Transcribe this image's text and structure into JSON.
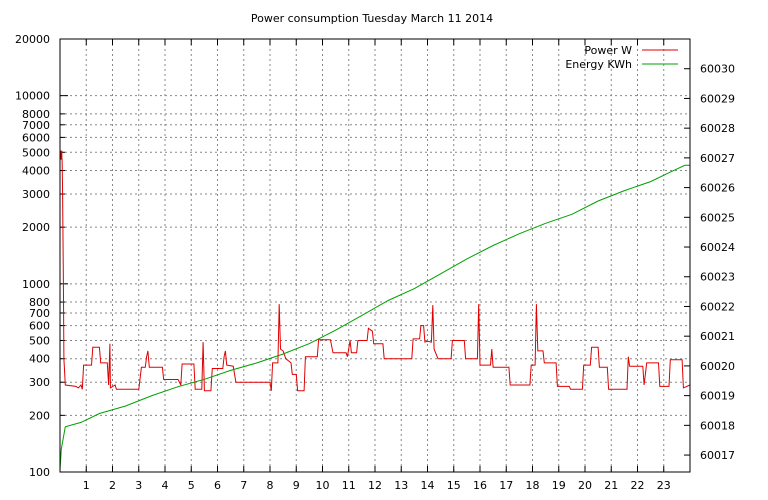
{
  "chart_data": {
    "type": "line",
    "title": "Power consumption Tuesday March 11 2014",
    "xlabel": "",
    "ylabel": "",
    "y2label": "",
    "x_ticks": [
      "1",
      "2",
      "3",
      "4",
      "5",
      "6",
      "7",
      "8",
      "9",
      "10",
      "11",
      "12",
      "13",
      "14",
      "15",
      "16",
      "17",
      "18",
      "19",
      "20",
      "21",
      "22",
      "23"
    ],
    "xlim": [
      0,
      24
    ],
    "y_scale": "log",
    "ylim": [
      100,
      20000
    ],
    "y_ticks": [
      {
        "value": 100,
        "label": "100"
      },
      {
        "value": 200,
        "label": "200"
      },
      {
        "value": 300,
        "label": "300"
      },
      {
        "value": 400,
        "label": "400"
      },
      {
        "value": 500,
        "label": "500"
      },
      {
        "value": 600,
        "label": "600"
      },
      {
        "value": 700,
        "label": "700"
      },
      {
        "value": 800,
        "label": "800"
      },
      {
        "value": 1000,
        "label": "1000"
      },
      {
        "value": 2000,
        "label": "2000"
      },
      {
        "value": 3000,
        "label": "3000"
      },
      {
        "value": 4000,
        "label": "4000"
      },
      {
        "value": 5000,
        "label": "5000"
      },
      {
        "value": 6000,
        "label": "6000"
      },
      {
        "value": 7000,
        "label": "7000"
      },
      {
        "value": 8000,
        "label": "8000"
      },
      {
        "value": 10000,
        "label": "10000"
      },
      {
        "value": 20000,
        "label": "20000"
      }
    ],
    "y2lim": [
      60016.43,
      60031.0
    ],
    "y2_ticks": [
      "60017",
      "60018",
      "60019",
      "60020",
      "60021",
      "60022",
      "60023",
      "60024",
      "60025",
      "60026",
      "60027",
      "60028",
      "60029",
      "60030"
    ],
    "grid": true,
    "legend_position": "top-right",
    "series": [
      {
        "name": "Power W",
        "color": "#e00000",
        "axis": "left",
        "points": [
          [
            0.0,
            4600
          ],
          [
            0.08,
            4600
          ],
          [
            0.1,
            3000
          ],
          [
            0.13,
            1000
          ],
          [
            0.15,
            400
          ],
          [
            0.2,
            290
          ],
          [
            0.6,
            285
          ],
          [
            0.7,
            280
          ],
          [
            0.8,
            290
          ],
          [
            0.85,
            275
          ],
          [
            0.9,
            370
          ],
          [
            1.2,
            370
          ],
          [
            1.25,
            460
          ],
          [
            1.5,
            460
          ],
          [
            1.55,
            380
          ],
          [
            1.8,
            380
          ],
          [
            1.85,
            290
          ],
          [
            1.9,
            480
          ],
          [
            1.92,
            280
          ],
          [
            2.1,
            290
          ],
          [
            2.15,
            275
          ],
          [
            3.0,
            275
          ],
          [
            3.1,
            360
          ],
          [
            3.25,
            360
          ],
          [
            3.3,
            410
          ],
          [
            3.35,
            440
          ],
          [
            3.4,
            360
          ],
          [
            3.9,
            360
          ],
          [
            3.95,
            310
          ],
          [
            4.5,
            310
          ],
          [
            4.6,
            290
          ],
          [
            4.65,
            375
          ],
          [
            5.1,
            375
          ],
          [
            5.15,
            275
          ],
          [
            5.4,
            275
          ],
          [
            5.45,
            490
          ],
          [
            5.5,
            270
          ],
          [
            5.75,
            270
          ],
          [
            5.8,
            355
          ],
          [
            6.2,
            355
          ],
          [
            6.25,
            410
          ],
          [
            6.3,
            440
          ],
          [
            6.35,
            370
          ],
          [
            6.6,
            365
          ],
          [
            6.7,
            300
          ],
          [
            8.0,
            300
          ],
          [
            8.05,
            270
          ],
          [
            8.1,
            380
          ],
          [
            8.3,
            380
          ],
          [
            8.35,
            780
          ],
          [
            8.4,
            450
          ],
          [
            8.5,
            440
          ],
          [
            8.6,
            400
          ],
          [
            8.8,
            380
          ],
          [
            8.85,
            330
          ],
          [
            9.0,
            330
          ],
          [
            9.05,
            270
          ],
          [
            9.3,
            270
          ],
          [
            9.35,
            410
          ],
          [
            9.8,
            410
          ],
          [
            9.85,
            505
          ],
          [
            10.3,
            505
          ],
          [
            10.4,
            430
          ],
          [
            10.9,
            430
          ],
          [
            10.95,
            410
          ],
          [
            11.05,
            500
          ],
          [
            11.1,
            430
          ],
          [
            11.3,
            430
          ],
          [
            11.35,
            500
          ],
          [
            11.7,
            500
          ],
          [
            11.75,
            580
          ],
          [
            11.9,
            560
          ],
          [
            11.95,
            480
          ],
          [
            12.3,
            480
          ],
          [
            12.35,
            400
          ],
          [
            13.4,
            400
          ],
          [
            13.45,
            510
          ],
          [
            13.7,
            510
          ],
          [
            13.75,
            600
          ],
          [
            13.85,
            600
          ],
          [
            13.9,
            490
          ],
          [
            14.0,
            495
          ],
          [
            14.15,
            490
          ],
          [
            14.2,
            770
          ],
          [
            14.25,
            450
          ],
          [
            14.4,
            400
          ],
          [
            14.9,
            400
          ],
          [
            14.95,
            500
          ],
          [
            15.4,
            500
          ],
          [
            15.45,
            400
          ],
          [
            15.9,
            400
          ],
          [
            15.95,
            780
          ],
          [
            16.0,
            370
          ],
          [
            16.4,
            370
          ],
          [
            16.45,
            450
          ],
          [
            16.5,
            360
          ],
          [
            17.1,
            360
          ],
          [
            17.15,
            290
          ],
          [
            17.9,
            290
          ],
          [
            17.95,
            370
          ],
          [
            18.1,
            370
          ],
          [
            18.15,
            780
          ],
          [
            18.2,
            440
          ],
          [
            18.4,
            440
          ],
          [
            18.45,
            380
          ],
          [
            18.9,
            380
          ],
          [
            18.95,
            285
          ],
          [
            19.4,
            285
          ],
          [
            19.45,
            275
          ],
          [
            19.9,
            275
          ],
          [
            19.95,
            370
          ],
          [
            20.2,
            370
          ],
          [
            20.25,
            460
          ],
          [
            20.5,
            460
          ],
          [
            20.55,
            360
          ],
          [
            20.85,
            360
          ],
          [
            20.9,
            275
          ],
          [
            21.6,
            275
          ],
          [
            21.65,
            410
          ],
          [
            21.7,
            365
          ],
          [
            22.2,
            365
          ],
          [
            22.25,
            290
          ],
          [
            22.35,
            380
          ],
          [
            22.8,
            380
          ],
          [
            22.85,
            285
          ],
          [
            23.2,
            285
          ],
          [
            23.25,
            395
          ],
          [
            23.7,
            395
          ],
          [
            23.75,
            280
          ],
          [
            24.0,
            290
          ]
        ]
      },
      {
        "name": "Energy KWh",
        "color": "#00a000",
        "axis": "right",
        "points": [
          [
            0.0,
            60016.5
          ],
          [
            0.05,
            60017.2
          ],
          [
            0.2,
            60017.95
          ],
          [
            0.8,
            60018.1
          ],
          [
            1.5,
            60018.4
          ],
          [
            2.5,
            60018.65
          ],
          [
            3.5,
            60019.0
          ],
          [
            4.5,
            60019.3
          ],
          [
            5.5,
            60019.55
          ],
          [
            6.5,
            60019.85
          ],
          [
            7.5,
            60020.1
          ],
          [
            8.5,
            60020.4
          ],
          [
            9.5,
            60020.75
          ],
          [
            10.5,
            60021.2
          ],
          [
            11.5,
            60021.7
          ],
          [
            12.5,
            60022.2
          ],
          [
            13.5,
            60022.6
          ],
          [
            14.5,
            60023.1
          ],
          [
            15.5,
            60023.6
          ],
          [
            16.5,
            60024.05
          ],
          [
            17.5,
            60024.45
          ],
          [
            18.5,
            60024.8
          ],
          [
            19.5,
            60025.1
          ],
          [
            20.5,
            60025.55
          ],
          [
            21.5,
            60025.9
          ],
          [
            22.5,
            60026.2
          ],
          [
            23.2,
            60026.5
          ],
          [
            23.8,
            60026.75
          ],
          [
            24.0,
            60026.75
          ]
        ]
      }
    ]
  }
}
